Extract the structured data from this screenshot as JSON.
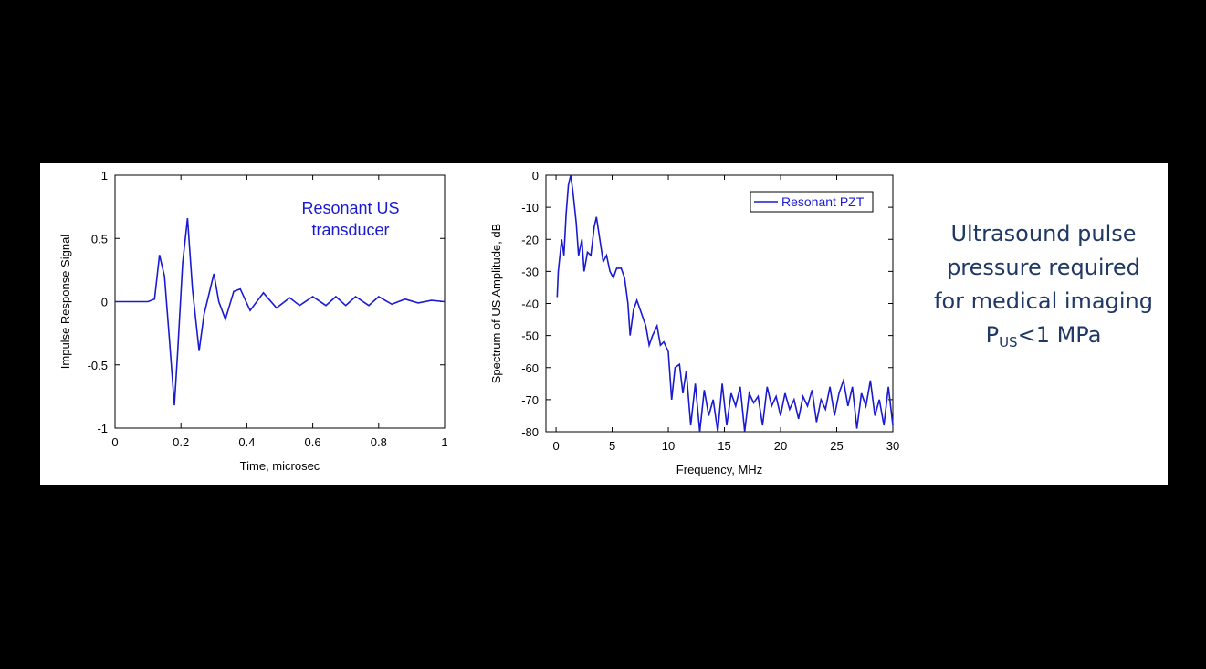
{
  "chart_data": [
    {
      "type": "line",
      "xlabel": "Time, microsec",
      "ylabel": "Impulse Response Signal",
      "annotation": [
        "Resonant US",
        "transducer"
      ],
      "annotation_color": "#1a1ad0",
      "xlim": [
        0,
        1
      ],
      "ylim": [
        -1,
        1
      ],
      "xticks": [
        0,
        0.2,
        0.4,
        0.6,
        0.8,
        1
      ],
      "yticks": [
        -1,
        -0.5,
        0,
        0.5,
        1
      ],
      "series": [
        {
          "color": "#1a1ad0",
          "x": [
            0,
            0.1,
            0.12,
            0.135,
            0.15,
            0.165,
            0.18,
            0.19,
            0.205,
            0.22,
            0.235,
            0.255,
            0.27,
            0.3,
            0.315,
            0.335,
            0.36,
            0.38,
            0.41,
            0.45,
            0.49,
            0.53,
            0.56,
            0.6,
            0.64,
            0.67,
            0.7,
            0.73,
            0.77,
            0.8,
            0.84,
            0.88,
            0.92,
            0.96,
            1.0
          ],
          "values": [
            0,
            0,
            0.02,
            0.37,
            0.2,
            -0.3,
            -0.82,
            -0.4,
            0.3,
            0.66,
            0.1,
            -0.39,
            -0.1,
            0.22,
            0.0,
            -0.14,
            0.08,
            0.1,
            -0.07,
            0.07,
            -0.05,
            0.03,
            -0.03,
            0.04,
            -0.03,
            0.04,
            -0.03,
            0.04,
            -0.03,
            0.04,
            -0.02,
            0.02,
            -0.01,
            0.01,
            0
          ]
        }
      ]
    },
    {
      "type": "line",
      "xlabel": "Frequency, MHz",
      "ylabel": "Spectrum of US Amplitude, dB",
      "legend": "upper right",
      "xlim": [
        -0.9,
        30
      ],
      "ylim": [
        -80,
        0
      ],
      "xticks": [
        0,
        5,
        10,
        15,
        20,
        25,
        30
      ],
      "yticks": [
        -80,
        -70,
        -60,
        -50,
        -40,
        -30,
        -20,
        -10,
        0
      ],
      "series": [
        {
          "name": "Resonant PZT",
          "color": "#1a1ad0",
          "x": [
            0.1,
            0.2,
            0.5,
            0.7,
            0.9,
            1.1,
            1.3,
            1.5,
            1.8,
            2.0,
            2.3,
            2.5,
            2.8,
            3.1,
            3.4,
            3.6,
            3.9,
            4.2,
            4.5,
            4.8,
            5.1,
            5.4,
            5.8,
            6.1,
            6.4,
            6.6,
            6.9,
            7.2,
            7.6,
            8.0,
            8.3,
            8.6,
            9.0,
            9.3,
            9.6,
            10.0,
            10.3,
            10.6,
            11.0,
            11.3,
            11.6,
            12.0,
            12.4,
            12.8,
            13.2,
            13.6,
            14.0,
            14.4,
            14.8,
            15.2,
            15.6,
            16.0,
            16.4,
            16.8,
            17.2,
            17.6,
            18.0,
            18.4,
            18.8,
            19.2,
            19.6,
            20.0,
            20.4,
            20.8,
            21.2,
            21.6,
            22.0,
            22.4,
            22.8,
            23.2,
            23.6,
            24.0,
            24.4,
            24.8,
            25.2,
            25.6,
            26.0,
            26.4,
            26.8,
            27.2,
            27.6,
            28.0,
            28.4,
            28.8,
            29.2,
            29.6,
            30.0
          ],
          "values": [
            -38,
            -30,
            -20,
            -25,
            -12,
            -3,
            0,
            -5,
            -15,
            -25,
            -20,
            -30,
            -24,
            -25,
            -16,
            -13,
            -20,
            -27,
            -25,
            -30,
            -32,
            -29,
            -29,
            -32,
            -40,
            -50,
            -42,
            -39,
            -43,
            -47,
            -53,
            -50,
            -47,
            -53,
            -52,
            -55,
            -70,
            -60,
            -59,
            -68,
            -61,
            -78,
            -65,
            -80,
            -67,
            -75,
            -70,
            -80,
            -65,
            -78,
            -68,
            -72,
            -66,
            -80,
            -68,
            -71,
            -69,
            -78,
            -66,
            -72,
            -69,
            -75,
            -68,
            -73,
            -70,
            -76,
            -69,
            -72,
            -67,
            -77,
            -70,
            -73,
            -66,
            -75,
            -68,
            -64,
            -72,
            -66,
            -79,
            -68,
            -72,
            -64,
            -75,
            -70,
            -78,
            -66,
            -78
          ]
        }
      ]
    }
  ],
  "slide_text": {
    "lines": [
      "Ultrasound pulse",
      "pressure required",
      "for medical imaging"
    ],
    "formula": {
      "base": "P",
      "subscript": "US",
      "rest": "<1 MPa"
    }
  }
}
